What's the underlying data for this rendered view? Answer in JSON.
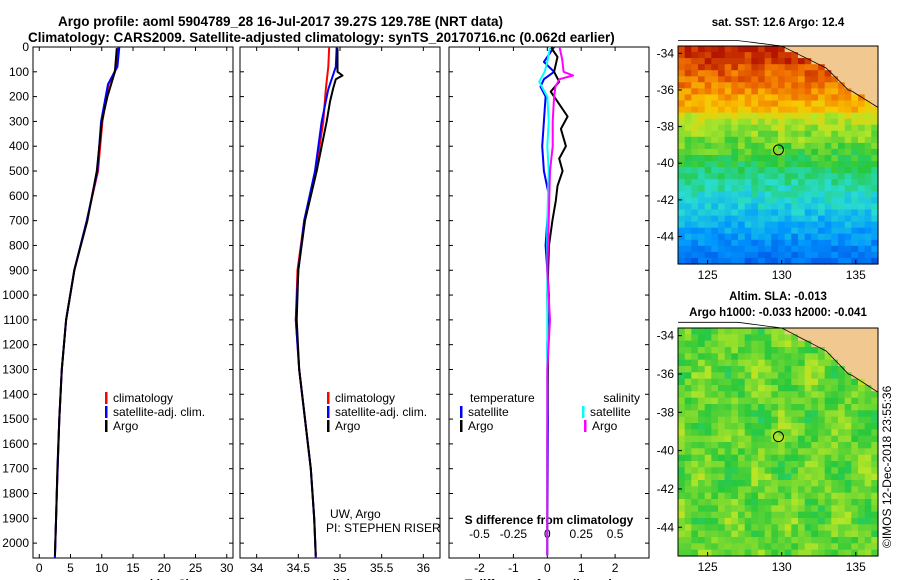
{
  "header": {
    "line1": "Argo profile: aoml 5904789_28 16-Jul-2017 39.27S 129.78E (NRT data)",
    "line2": "Climatology: CARS2009. Satellite-adjusted climatology: synTS_20170716.nc (0.062d earlier)"
  },
  "colors": {
    "climatology": "#ff0000",
    "satellite": "#0000ff",
    "argo": "#000000",
    "argo_salinity_diff": "#ff00ff",
    "satellite_salinity_diff": "#00ffff"
  },
  "chart_data": [
    {
      "id": "temperature",
      "type": "line",
      "xlabel": "temperature (deg C)",
      "xlim": [
        -1,
        31
      ],
      "xticks": [
        0,
        5,
        10,
        15,
        20,
        25,
        30
      ],
      "ylim": [
        0,
        2060
      ],
      "yticks": [
        0,
        100,
        200,
        300,
        400,
        500,
        600,
        700,
        800,
        900,
        1000,
        1100,
        1200,
        1300,
        1400,
        1500,
        1600,
        1700,
        1800,
        1900,
        2000
      ],
      "legend": [
        "climatology",
        "satellite-adj. clim.",
        "Argo"
      ],
      "series": [
        {
          "name": "climatology",
          "color": "climatology",
          "depth": [
            0,
            80,
            150,
            300,
            500,
            700,
            900,
            1100,
            1300,
            1500,
            1800,
            2060
          ],
          "values": [
            12.6,
            12.4,
            11.1,
            10.1,
            9.4,
            7.6,
            5.6,
            4.3,
            3.6,
            3.2,
            2.8,
            2.5
          ]
        },
        {
          "name": "satellite-adj. clim.",
          "color": "satellite",
          "depth": [
            0,
            80,
            150,
            300,
            500,
            700,
            900,
            1100,
            1300,
            1500,
            1800,
            2060
          ],
          "values": [
            12.8,
            12.5,
            11.0,
            9.9,
            9.3,
            7.6,
            5.6,
            4.3,
            3.6,
            3.2,
            2.8,
            2.5
          ]
        },
        {
          "name": "Argo",
          "color": "argo",
          "depth": [
            5,
            100,
            200,
            300,
            400,
            500,
            700,
            900,
            1100,
            1300,
            1500,
            1700,
            1900,
            2050
          ],
          "values": [
            12.4,
            12.1,
            10.9,
            10.0,
            9.6,
            9.2,
            7.7,
            5.6,
            4.3,
            3.6,
            3.2,
            2.9,
            2.7,
            2.5
          ]
        }
      ]
    },
    {
      "id": "salinity",
      "type": "line",
      "xlabel": "salinity",
      "xlim": [
        33.8,
        36.2
      ],
      "xticks": [
        34,
        34.5,
        35,
        35.5,
        36
      ],
      "ylim": [
        0,
        2060
      ],
      "legend": [
        "climatology",
        "satellite-adj. clim.",
        "Argo"
      ],
      "annotation": [
        "UW, Argo",
        "PI: STEPHEN RISER"
      ],
      "series": [
        {
          "name": "climatology",
          "color": "climatology",
          "depth": [
            0,
            80,
            170,
            300,
            500,
            700,
            900,
            1100,
            1300,
            1500,
            1700,
            1900,
            2060
          ],
          "values": [
            34.87,
            34.86,
            34.83,
            34.8,
            34.71,
            34.57,
            34.49,
            34.47,
            34.51,
            34.58,
            34.65,
            34.69,
            34.71
          ]
        },
        {
          "name": "satellite-adj. clim.",
          "color": "satellite",
          "depth": [
            0,
            80,
            170,
            300,
            500,
            700,
            900,
            1100,
            1300,
            1500,
            1700,
            1900,
            2060
          ],
          "values": [
            34.96,
            34.95,
            34.86,
            34.78,
            34.7,
            34.57,
            34.5,
            34.47,
            34.51,
            34.58,
            34.65,
            34.69,
            34.71
          ]
        },
        {
          "name": "Argo",
          "color": "argo",
          "depth": [
            5,
            100,
            115,
            130,
            165,
            220,
            300,
            400,
            500,
            700,
            900,
            1100,
            1300,
            1500,
            1700,
            1900,
            2050
          ],
          "values": [
            34.97,
            34.97,
            35.03,
            34.95,
            34.92,
            34.88,
            34.84,
            34.78,
            34.72,
            34.58,
            34.5,
            34.48,
            34.51,
            34.58,
            34.65,
            34.69,
            34.71
          ]
        }
      ]
    },
    {
      "id": "difference",
      "type": "line",
      "xlabel": "T difference from climatology",
      "x2label": "S difference from climatology",
      "xlim": [
        -2.9,
        3.0
      ],
      "xticks": [
        -2,
        -1,
        0,
        1,
        2
      ],
      "x2ticks": [
        -0.5,
        -0.25,
        0,
        0.25,
        0.5
      ],
      "x2tick_labels": [
        "-0.5",
        "-0.25",
        "0",
        "0.25",
        "0.5"
      ],
      "ylim": [
        0,
        2060
      ],
      "legend_temperature": {
        "title": "temperature",
        "items": [
          "satellite",
          "Argo"
        ]
      },
      "legend_salinity": {
        "title": "salinity",
        "items": [
          "satellite",
          "Argo"
        ]
      },
      "series": [
        {
          "name": "temperature satellite",
          "color": "satellite",
          "depth": [
            0,
            60,
            100,
            130,
            160,
            200,
            300,
            400,
            500,
            600,
            700,
            800,
            1000,
            1200,
            1500,
            2050
          ],
          "values": [
            0.2,
            -0.1,
            0.2,
            -0.1,
            -0.2,
            -0.05,
            -0.1,
            -0.15,
            -0.1,
            0.05,
            0.0,
            -0.05,
            0.05,
            0.0,
            0.02,
            0.0
          ]
        },
        {
          "name": "temperature Argo",
          "color": "argo",
          "depth": [
            0,
            40,
            100,
            140,
            180,
            220,
            280,
            330,
            400,
            450,
            500,
            560,
            620,
            700,
            800,
            1000,
            1300,
            1600,
            2050
          ],
          "values": [
            0.1,
            0.3,
            0.2,
            0.35,
            0.1,
            0.3,
            0.6,
            0.4,
            0.55,
            0.35,
            0.45,
            0.3,
            0.25,
            0.15,
            0.05,
            0.0,
            0.02,
            0.0,
            0.0
          ]
        },
        {
          "name": "salinity satellite",
          "color": "satellite_salinity_diff",
          "depth": [
            0,
            60,
            100,
            140,
            170,
            200,
            300,
            400,
            500,
            700,
            900,
            1200,
            1600,
            2050
          ],
          "values": [
            0.02,
            0.0,
            -0.02,
            -0.06,
            -0.03,
            0.0,
            0.01,
            0.0,
            0.01,
            0.0,
            0.0,
            0.0,
            0.0,
            0.0
          ]
        },
        {
          "name": "salinity Argo",
          "color": "argo_salinity_diff",
          "depth": [
            0,
            50,
            100,
            115,
            130,
            160,
            200,
            300,
            400,
            500,
            700,
            900,
            1100,
            1300,
            1600,
            2050
          ],
          "values": [
            0.09,
            0.11,
            0.12,
            0.19,
            0.09,
            0.06,
            0.05,
            0.04,
            0.04,
            0.02,
            0.01,
            0.0,
            0.02,
            0.0,
            0.0,
            0.0
          ]
        }
      ]
    },
    {
      "id": "sst_map",
      "type": "heatmap",
      "title": "sat. SST: 12.6  Argo: 12.4",
      "xticks": [
        125,
        130,
        135
      ],
      "yticks": [
        -34,
        -36,
        -38,
        -40,
        -42,
        -44
      ],
      "lonlim": [
        123,
        136.5
      ],
      "latlim": [
        -45.5,
        -33.6
      ],
      "marker": {
        "lon": 129.78,
        "lat": -39.27
      }
    },
    {
      "id": "sla_map",
      "type": "heatmap",
      "title": "Altim. SLA: -0.013",
      "subtitle": "Argo h1000: -0.033  h2000: -0.041",
      "xticks": [
        125,
        130,
        135
      ],
      "yticks": [
        -34,
        -36,
        -38,
        -40,
        -42,
        -44
      ],
      "lonlim": [
        123,
        136.5
      ],
      "latlim": [
        -45.5,
        -33.6
      ],
      "marker": {
        "lon": 129.78,
        "lat": -39.27
      }
    }
  ],
  "credit": "©IMOS 12-Dec-2018 23:55:36"
}
